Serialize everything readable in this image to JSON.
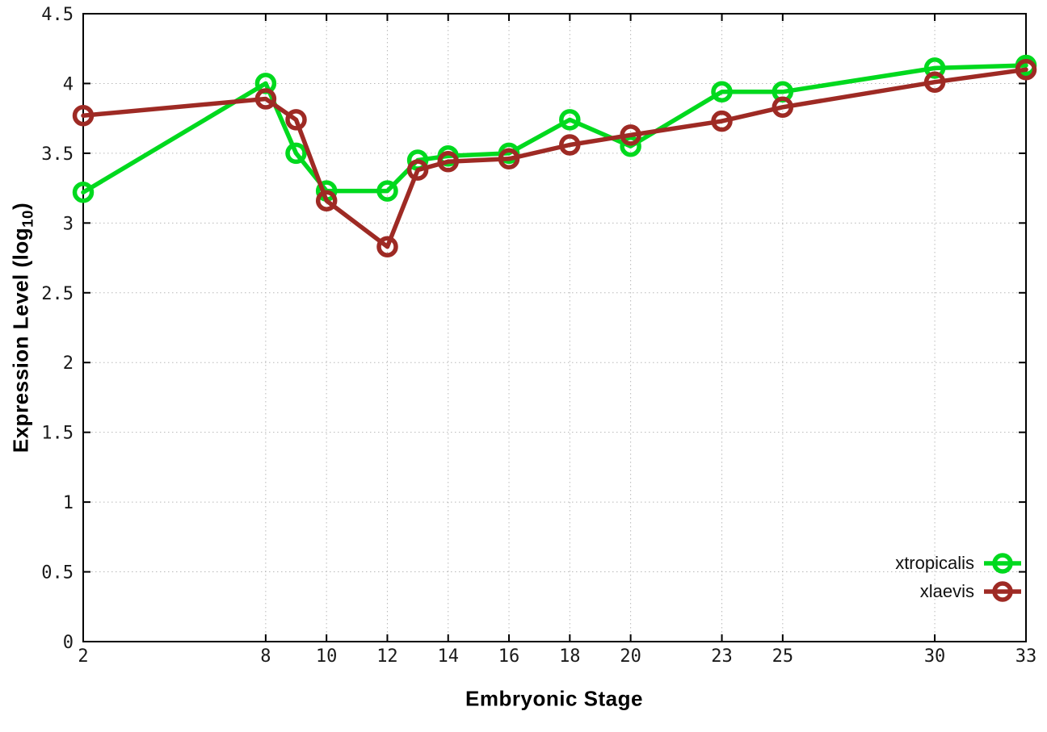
{
  "chart_data": {
    "type": "line",
    "title": "",
    "xlabel": "Embryonic Stage",
    "ylabel": "Expression Level (log10)",
    "ylabel_parts": {
      "pre": "Expression Level (log",
      "sub": "10",
      "post": ")"
    },
    "xlim": [
      2,
      33
    ],
    "ylim": [
      0,
      4.5
    ],
    "x_tick_labels": [
      "2",
      "8",
      "10",
      "12",
      "14",
      "16",
      "18",
      "20",
      "23",
      "25",
      "30",
      "33"
    ],
    "y_tick_labels": [
      "0",
      "0.5",
      "1",
      "1.5",
      "2",
      "2.5",
      "3",
      "3.5",
      "4",
      "4.5"
    ],
    "grid": "dotted both axes",
    "legend_position": "inside bottom-right",
    "x": [
      2,
      8,
      9,
      10,
      12,
      13,
      14,
      16,
      18,
      20,
      23,
      25,
      30,
      33
    ],
    "series": [
      {
        "name": "xtropicalis",
        "color": "#00d91e",
        "marker": "open-circle",
        "values": [
          3.22,
          4.0,
          3.5,
          3.23,
          3.23,
          3.45,
          3.48,
          3.5,
          3.74,
          3.55,
          3.94,
          3.94,
          4.11,
          4.13
        ]
      },
      {
        "name": "xlaevis",
        "color": "#9e2a24",
        "marker": "open-circle",
        "values": [
          3.77,
          3.89,
          3.74,
          3.16,
          2.83,
          3.38,
          3.44,
          3.46,
          3.56,
          3.63,
          3.73,
          3.83,
          4.01,
          4.1
        ]
      }
    ],
    "colors": {
      "grid": "#b8b8b8",
      "axis": "#000000",
      "tick_text": "#1a1a1a"
    }
  }
}
